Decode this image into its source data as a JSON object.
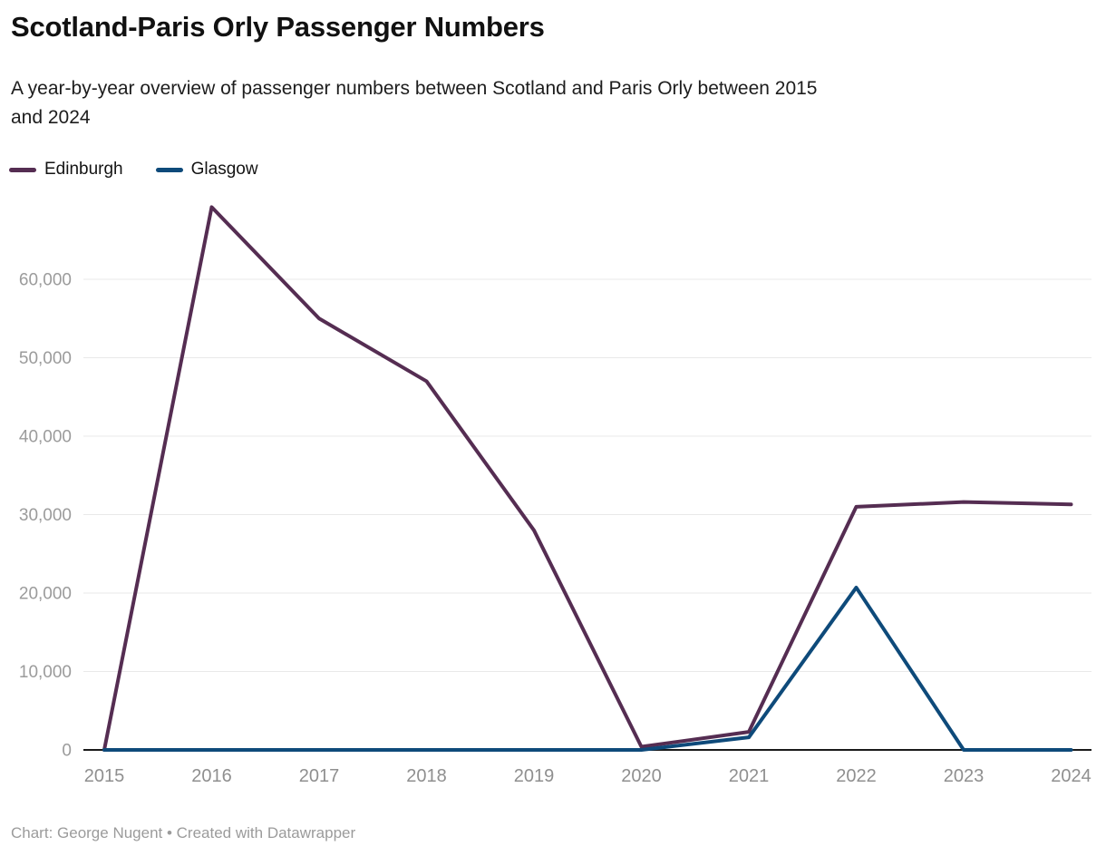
{
  "header": {
    "title": "Scotland-Paris Orly Passenger Numbers",
    "subtitle_line1": "A year-by-year overview of passenger numbers between Scotland and Paris Orly between 2015",
    "subtitle_line2": "and 2024"
  },
  "legend": {
    "items": [
      {
        "label": "Edinburgh",
        "color": "#552d52"
      },
      {
        "label": "Glasgow",
        "color": "#0e4a7a"
      }
    ]
  },
  "chart_data": {
    "type": "line",
    "title": "Scotland-Paris Orly Passenger Numbers",
    "subtitle": "A year-by-year overview of passenger numbers between Scotland and Paris Orly between 2015 and 2024",
    "x": [
      2015,
      2016,
      2017,
      2018,
      2019,
      2020,
      2021,
      2022,
      2023,
      2024
    ],
    "series": [
      {
        "name": "Edinburgh",
        "color": "#552d52",
        "values": [
          0,
          69200,
          55000,
          47000,
          28000,
          400,
          2300,
          31000,
          31600,
          31300
        ]
      },
      {
        "name": "Glasgow",
        "color": "#0e4a7a",
        "values": [
          0,
          0,
          0,
          0,
          0,
          0,
          1600,
          20700,
          0,
          0
        ]
      }
    ],
    "xlabel": "",
    "ylabel": "",
    "ylim": [
      0,
      70000
    ],
    "yticks": [
      0,
      10000,
      20000,
      30000,
      40000,
      50000,
      60000
    ],
    "grid": true,
    "legend_position": "top-left",
    "colors": {
      "gridline": "#e9e9e9",
      "zero_axis": "#1a1a1a",
      "y_tick_label": "#9b9b9b",
      "x_tick_label": "#8f8f8f"
    }
  },
  "footer": {
    "credit": "Chart: George Nugent • Created with Datawrapper"
  }
}
